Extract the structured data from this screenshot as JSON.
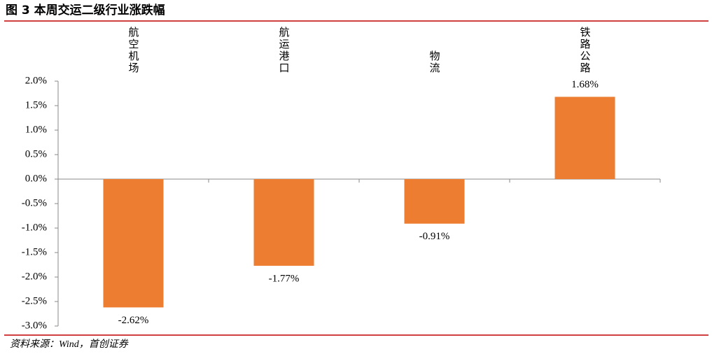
{
  "chart_data": {
    "type": "bar",
    "title": "图 3 本周交运二级行业涨跌幅",
    "source": "资料来源：Wind，首创证券",
    "categories": [
      "航空机场",
      "航运港口",
      "物流",
      "铁路公路"
    ],
    "values": [
      -2.62,
      -1.77,
      -0.91,
      1.68
    ],
    "value_labels": [
      "-2.62%",
      "-1.77%",
      "-0.91%",
      "1.68%"
    ],
    "color": "#ed7d31",
    "ylim": [
      -3,
      2
    ],
    "yticks": [
      {
        "value": 2,
        "label": "2.0%"
      },
      {
        "value": 1.5,
        "label": "1.5%"
      },
      {
        "value": 1,
        "label": "1.0%"
      },
      {
        "value": 0.5,
        "label": "0.5%"
      },
      {
        "value": 0,
        "label": "0.0%"
      },
      {
        "value": -0.5,
        "label": "-0.5%"
      },
      {
        "value": -1,
        "label": "-1.0%"
      },
      {
        "value": -1.5,
        "label": "-1.5%"
      },
      {
        "value": -2,
        "label": "-2.0%"
      },
      {
        "value": -2.5,
        "label": "-2.5%"
      },
      {
        "value": -3,
        "label": "-3.0%"
      }
    ],
    "grid": false
  }
}
